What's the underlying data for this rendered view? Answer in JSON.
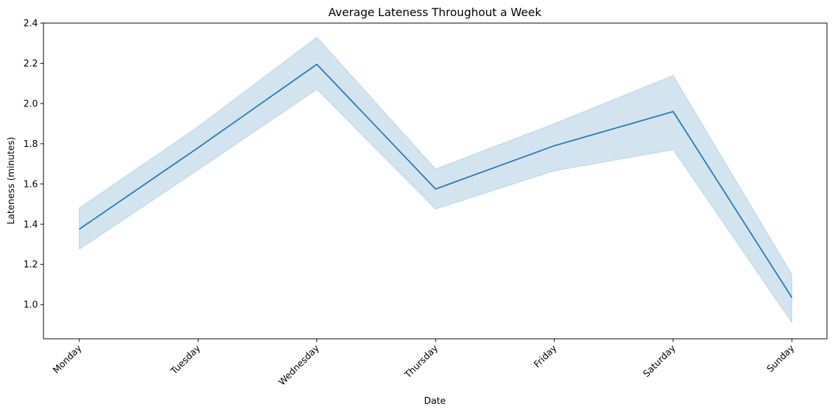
{
  "chart_data": {
    "type": "line",
    "title": "Average Lateness Throughout a Week",
    "xlabel": "Date",
    "ylabel": "Lateness (minutes)",
    "categories": [
      "Monday",
      "Tuesday",
      "Wednesday",
      "Thursday",
      "Friday",
      "Saturday",
      "Sunday"
    ],
    "series": [
      {
        "values": [
          1.375,
          1.78,
          2.195,
          1.575,
          1.79,
          1.96,
          1.035
        ],
        "ci_lower": [
          1.275,
          1.67,
          2.07,
          1.475,
          1.665,
          1.77,
          0.91
        ],
        "ci_upper": [
          1.48,
          1.885,
          2.33,
          1.675,
          1.9,
          2.14,
          1.15
        ],
        "color": "#1f77b4"
      }
    ],
    "ylim": [
      0.83,
      2.4
    ],
    "yticks": [
      "1.0",
      "1.2",
      "1.4",
      "1.6",
      "1.8",
      "2.0",
      "2.2",
      "2.4"
    ],
    "grid": false,
    "band_color": "#1f77b4"
  }
}
